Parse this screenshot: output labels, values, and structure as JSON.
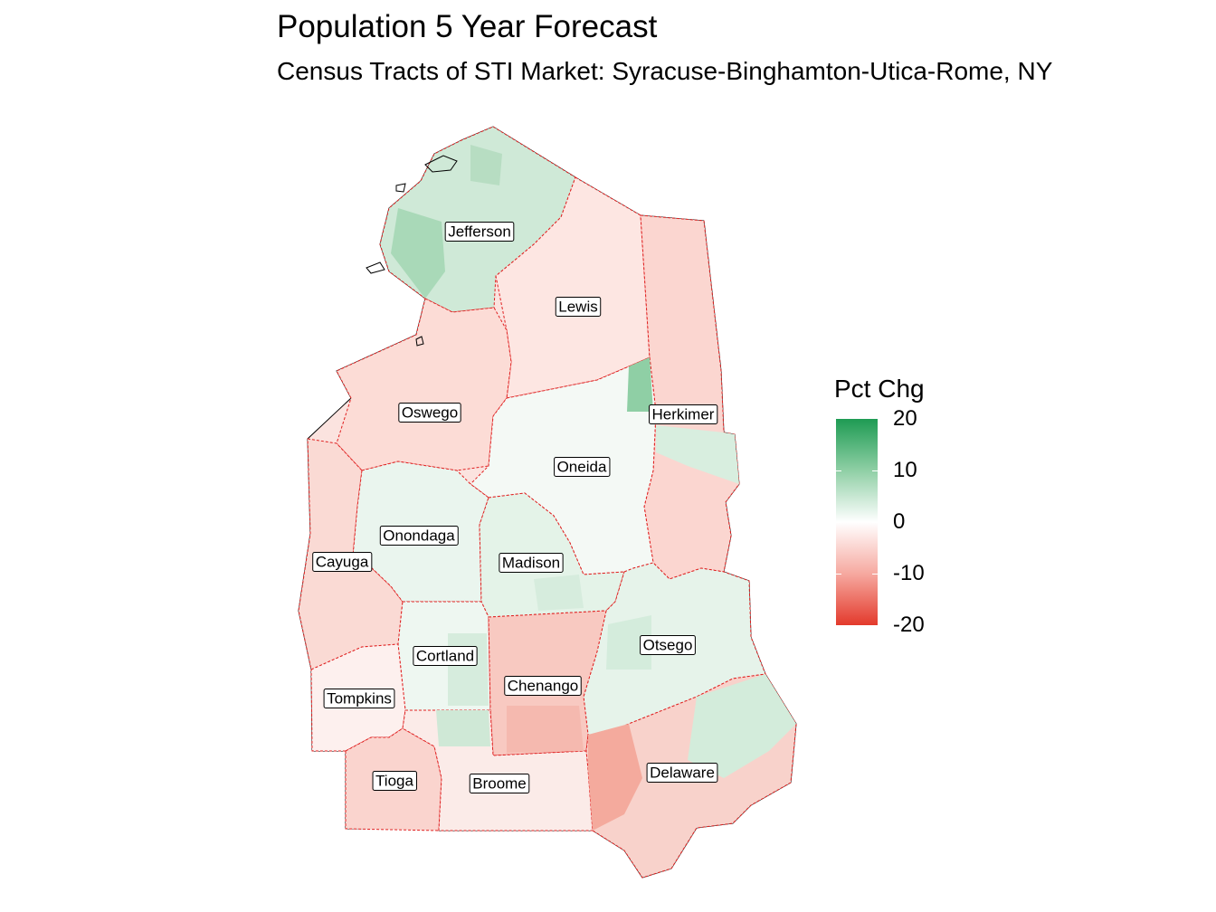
{
  "title": "Population 5 Year Forecast",
  "subtitle": "Census Tracts of STI Market: Syracuse-Binghamton-Utica-Rome, NY",
  "legend": {
    "title": "Pct Chg",
    "ticks": [
      "20",
      "10",
      "0",
      "-10",
      "-20"
    ],
    "high_color": "#1e9b53",
    "mid_color": "#ffffff",
    "low_color": "#e33a2c"
  },
  "counties": [
    {
      "name": "Jefferson",
      "pct_chg": 4
    },
    {
      "name": "Lewis",
      "pct_chg": -3
    },
    {
      "name": "Oswego",
      "pct_chg": -4
    },
    {
      "name": "Herkimer",
      "pct_chg": -5
    },
    {
      "name": "Oneida",
      "pct_chg": 1
    },
    {
      "name": "Onondaga",
      "pct_chg": 2
    },
    {
      "name": "Cayuga",
      "pct_chg": -4
    },
    {
      "name": "Madison",
      "pct_chg": 3
    },
    {
      "name": "Otsego",
      "pct_chg": 3
    },
    {
      "name": "Cortland",
      "pct_chg": 2
    },
    {
      "name": "Chenango",
      "pct_chg": -6
    },
    {
      "name": "Tompkins",
      "pct_chg": -2
    },
    {
      "name": "Tioga",
      "pct_chg": -5
    },
    {
      "name": "Broome",
      "pct_chg": -1
    },
    {
      "name": "Delaware",
      "pct_chg": -4
    }
  ]
}
